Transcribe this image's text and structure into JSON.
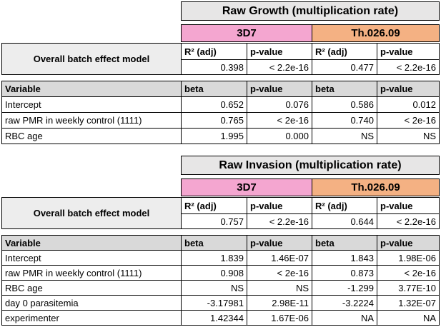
{
  "sections": [
    {
      "title": "Raw Growth (multiplication rate)",
      "strains": [
        "3D7",
        "Th.026.09"
      ],
      "model": {
        "label": "Overall batch effect model",
        "headers": [
          "R² (adj)",
          "p-value",
          "R² (adj)",
          "p-value"
        ],
        "values": [
          "0.398",
          "< 2.2e-16",
          "0.477",
          "< 2.2e-16"
        ]
      },
      "variables": {
        "headers": [
          "Variable",
          "beta",
          "p-value",
          "beta",
          "p-value"
        ],
        "rows": [
          [
            "Intercept",
            "0.652",
            "0.076",
            "0.586",
            "0.012"
          ],
          [
            "raw PMR in weekly control (1111)",
            "0.765",
            "< 2e-16",
            "0.740",
            "< 2e-16"
          ],
          [
            "RBC age",
            "1.995",
            "0.000",
            "NS",
            "NS"
          ]
        ]
      }
    },
    {
      "title": "Raw Invasion (multiplication rate)",
      "strains": [
        "3D7",
        "Th.026.09"
      ],
      "model": {
        "label": "Overall batch effect model",
        "headers": [
          "R² (adj)",
          "p-value",
          "R² (adj)",
          "p-value"
        ],
        "values": [
          "0.757",
          "< 2.2e-16",
          "0.644",
          "< 2.2e-16"
        ]
      },
      "variables": {
        "headers": [
          "Variable",
          "beta",
          "p-value",
          "beta",
          "p-value"
        ],
        "rows": [
          [
            "Intercept",
            "1.839",
            "1.46E-07",
            "1.843",
            "1.98E-06"
          ],
          [
            "raw PMR in weekly control (1111)",
            "0.908",
            "< 2e-16",
            "0.873",
            "< 2e-16"
          ],
          [
            "RBC age",
            "NS",
            "NS",
            "-1.299",
            "3.77E-10"
          ],
          [
            "day 0 parasitemia",
            "-3.17981",
            "2.98E-11",
            "-3.2224",
            "1.32E-07"
          ],
          [
            "experimenter",
            "1.42344",
            "1.67E-06",
            "NA",
            "NA"
          ]
        ]
      }
    }
  ]
}
